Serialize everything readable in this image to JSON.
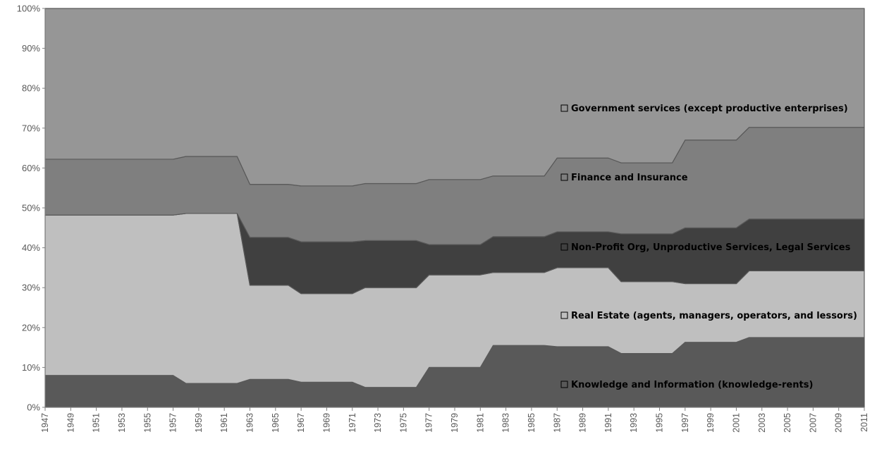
{
  "chart_data": {
    "type": "area",
    "stacked": true,
    "normalized_percent": true,
    "x": [
      1947,
      1948,
      1949,
      1950,
      1951,
      1952,
      1953,
      1954,
      1955,
      1956,
      1957,
      1958,
      1959,
      1960,
      1961,
      1962,
      1963,
      1964,
      1965,
      1966,
      1967,
      1968,
      1969,
      1970,
      1971,
      1972,
      1973,
      1974,
      1975,
      1976,
      1977,
      1978,
      1979,
      1980,
      1981,
      1982,
      1983,
      1984,
      1985,
      1986,
      1987,
      1988,
      1989,
      1990,
      1991,
      1992,
      1993,
      1994,
      1995,
      1996,
      1997,
      1998,
      1999,
      2000,
      2001,
      2002,
      2003,
      2004,
      2005,
      2006,
      2007,
      2008,
      2009,
      2010,
      2011
    ],
    "x_tick_labels": [
      "1947",
      "1949",
      "1951",
      "1953",
      "1955",
      "1957",
      "1959",
      "1961",
      "1963",
      "1965",
      "1967",
      "1969",
      "1971",
      "1973",
      "1975",
      "1977",
      "1979",
      "1981",
      "1983",
      "1985",
      "1987",
      "1989",
      "1991",
      "1993",
      "1995",
      "1997",
      "1999",
      "2001",
      "2003",
      "2005",
      "2007",
      "2009",
      "2011"
    ],
    "y_tick_labels": [
      "0%",
      "10%",
      "20%",
      "30%",
      "40%",
      "50%",
      "60%",
      "70%",
      "80%",
      "90%",
      "100%"
    ],
    "ylim": [
      0,
      100
    ],
    "series": [
      {
        "name": "Knowledge and Information (knowledge-rents)",
        "color": "#595959",
        "values": [
          8,
          8,
          8,
          8,
          8,
          8,
          8,
          8,
          8,
          8,
          8,
          6,
          6,
          6,
          6,
          6,
          7,
          7,
          7,
          7,
          6.3,
          6.3,
          6.3,
          6.3,
          6.3,
          5,
          5,
          5,
          5,
          5,
          10,
          10,
          10,
          10,
          10,
          15.5,
          15.5,
          15.5,
          15.5,
          15.5,
          15.2,
          15.2,
          15.2,
          15.2,
          15.2,
          13.5,
          13.5,
          13.5,
          13.5,
          13.5,
          16.3,
          16.3,
          16.3,
          16.3,
          16.3,
          17.5,
          17.5,
          17.5,
          17.5,
          17.5,
          17.5,
          17.5,
          17.5,
          17.5,
          17.5
        ]
      },
      {
        "name": "Real Estate (agents, managers, operators, and lessors)",
        "color": "#bfbfbf",
        "values": [
          40.2,
          40.2,
          40.2,
          40.2,
          40.2,
          40.2,
          40.2,
          40.2,
          40.2,
          40.2,
          40.2,
          42.6,
          42.6,
          42.6,
          42.6,
          42.6,
          23.6,
          23.6,
          23.6,
          23.6,
          22.2,
          22.2,
          22.2,
          22.2,
          22.2,
          25,
          25,
          25,
          25,
          25,
          23.2,
          23.2,
          23.2,
          23.2,
          23.2,
          18.3,
          18.3,
          18.3,
          18.3,
          18.3,
          19.8,
          19.8,
          19.8,
          19.8,
          19.8,
          18,
          18,
          18,
          18,
          18,
          14.7,
          14.7,
          14.7,
          14.7,
          14.7,
          16.7,
          16.7,
          16.7,
          16.7,
          16.7,
          16.7,
          16.7,
          16.7,
          16.7,
          16.7
        ]
      },
      {
        "name": "Non-Profit Org, Unproductive Services, Legal Services",
        "color": "#404040",
        "values": [
          0,
          0,
          0,
          0,
          0,
          0,
          0,
          0,
          0,
          0,
          0,
          0,
          0,
          0,
          0,
          0,
          12,
          12,
          12,
          12,
          13,
          13,
          13,
          13,
          13,
          11.8,
          11.8,
          11.8,
          11.8,
          11.8,
          7.6,
          7.6,
          7.6,
          7.6,
          7.6,
          9,
          9,
          9,
          9,
          9,
          9,
          9,
          9,
          9,
          9,
          12,
          12,
          12,
          12,
          12,
          14,
          14,
          14,
          14,
          14,
          13,
          13,
          13,
          13,
          13,
          13,
          13,
          13,
          13,
          13
        ]
      },
      {
        "name": "Finance and Insurance",
        "color": "#7f7f7f",
        "values": [
          14,
          14,
          14,
          14,
          14,
          14,
          14,
          14,
          14,
          14,
          14,
          14.3,
          14.3,
          14.3,
          14.3,
          14.3,
          13.3,
          13.3,
          13.3,
          13.3,
          14,
          14,
          14,
          14,
          14,
          14.3,
          14.3,
          14.3,
          14.3,
          14.3,
          16.3,
          16.3,
          16.3,
          16.3,
          16.3,
          15.2,
          15.2,
          15.2,
          15.2,
          15.2,
          18.5,
          18.5,
          18.5,
          18.5,
          18.5,
          17.8,
          17.8,
          17.8,
          17.8,
          17.8,
          22,
          22,
          22,
          22,
          22,
          23,
          23,
          23,
          23,
          23,
          23,
          23,
          23,
          23,
          23
        ]
      },
      {
        "name": "Government services (except productive enterprises)",
        "color": "#969696",
        "values": [
          37.8,
          37.8,
          37.8,
          37.8,
          37.8,
          37.8,
          37.8,
          37.8,
          37.8,
          37.8,
          37.8,
          37.1,
          37.1,
          37.1,
          37.1,
          37.1,
          44.1,
          44.1,
          44.1,
          44.1,
          44.5,
          44.5,
          44.5,
          44.5,
          44.5,
          43.9,
          43.9,
          43.9,
          43.9,
          43.9,
          42.9,
          42.9,
          42.9,
          42.9,
          42.9,
          42,
          42,
          42,
          42,
          42,
          37.5,
          37.5,
          37.5,
          37.5,
          37.5,
          38.7,
          38.7,
          38.7,
          38.7,
          38.7,
          33,
          33,
          33,
          33,
          33,
          29.8,
          29.8,
          29.8,
          29.8,
          29.8,
          29.8,
          29.8,
          29.8,
          29.8,
          29.8
        ]
      }
    ],
    "legend": {
      "placement": "right-inside-plot",
      "labels": [
        "Government services (except productive enterprises)",
        "Finance and Insurance",
        "Non-Profit Org, Unproductive Services, Legal Services",
        "Real Estate (agents, managers, operators, and lessors)",
        "Knowledge and Information (knowledge-rents)"
      ]
    },
    "grid": false
  }
}
